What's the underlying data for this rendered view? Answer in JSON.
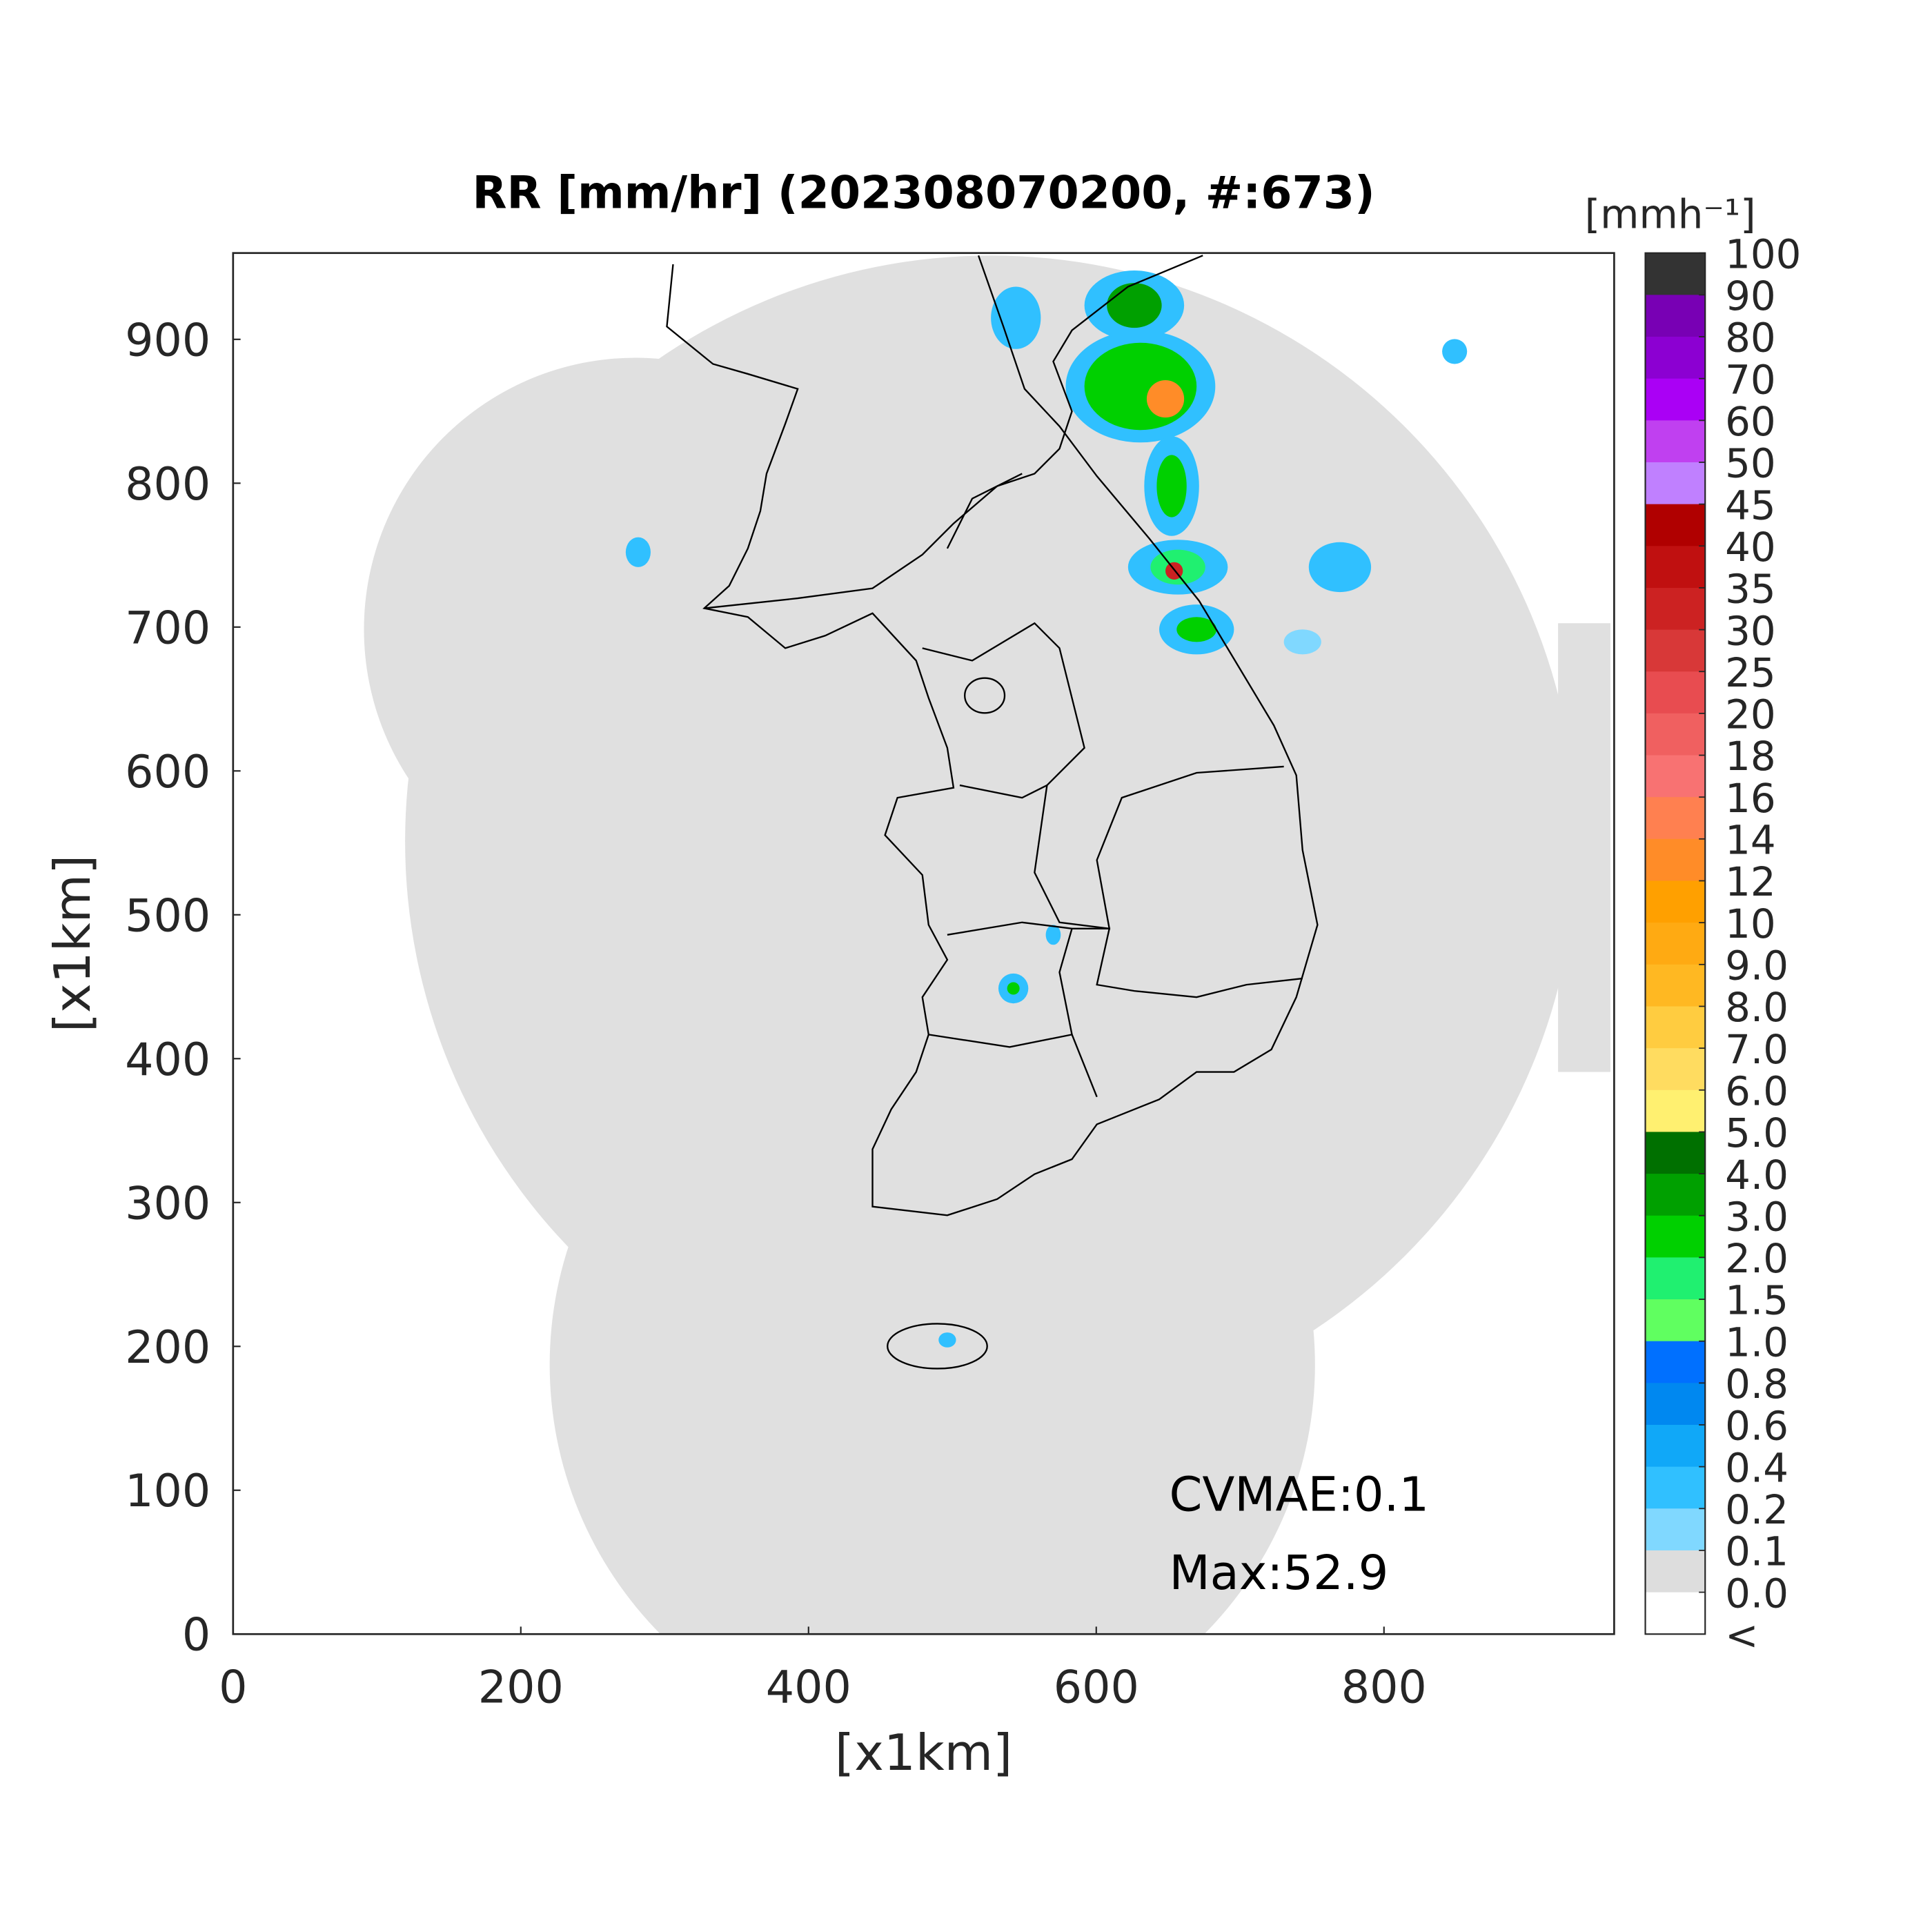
{
  "map": {
    "title": "RR [mm/hr] (202308070200, #:673)",
    "xlabel": "[x1km]",
    "ylabel": "[x1km]",
    "xlim": [
      0,
      960
    ],
    "ylim": [
      0,
      960
    ],
    "xticks": [
      0,
      200,
      400,
      600,
      800
    ],
    "yticks": [
      0,
      100,
      200,
      300,
      400,
      500,
      600,
      700,
      800,
      900
    ],
    "annotations": [
      "CVMAE:0.1",
      "Max:52.9"
    ],
    "colorbar": {
      "unit_label": "[mmh⁻¹]",
      "ticks": [
        100,
        90,
        80,
        70,
        60,
        50,
        45,
        40,
        35,
        30,
        25,
        20,
        18,
        16,
        14,
        12,
        10,
        {
          "value": 9,
          "label": "9.0"
        },
        {
          "value": 8,
          "label": "8.0"
        },
        {
          "value": 7,
          "label": "7.0"
        },
        {
          "value": 6,
          "label": "6.0"
        },
        {
          "value": 5,
          "label": "5.0"
        },
        {
          "value": 4,
          "label": "4.0"
        },
        {
          "value": 3,
          "label": "3.0"
        },
        {
          "value": 2,
          "label": "2.0"
        },
        1.5,
        {
          "value": 1,
          "label": "1.0"
        },
        0.8,
        0.6,
        0.4,
        0.2,
        0.1,
        {
          "value": 0,
          "label": "0.0"
        }
      ],
      "under_label": "<",
      "colors": [
        "#333333",
        "#7800b4",
        "#8c00d2",
        "#aa00f5",
        "#c040f0",
        "#c080ff",
        "#b00000",
        "#c01010",
        "#cc2222",
        "#d83838",
        "#e84c50",
        "#f06060",
        "#f87272",
        "#ff8050",
        "#ff8c28",
        "#ffa000",
        "#ffaa12",
        "#ffb822",
        "#ffcc40",
        "#ffdc60",
        "#fff070",
        "#007000",
        "#00a000",
        "#00d000",
        "#20f070",
        "#60ff60",
        "#0070ff",
        "#0088f0",
        "#10a8f8",
        "#30c0ff",
        "#80d8ff",
        "#dddddd",
        "#ffffff"
      ]
    }
  }
}
